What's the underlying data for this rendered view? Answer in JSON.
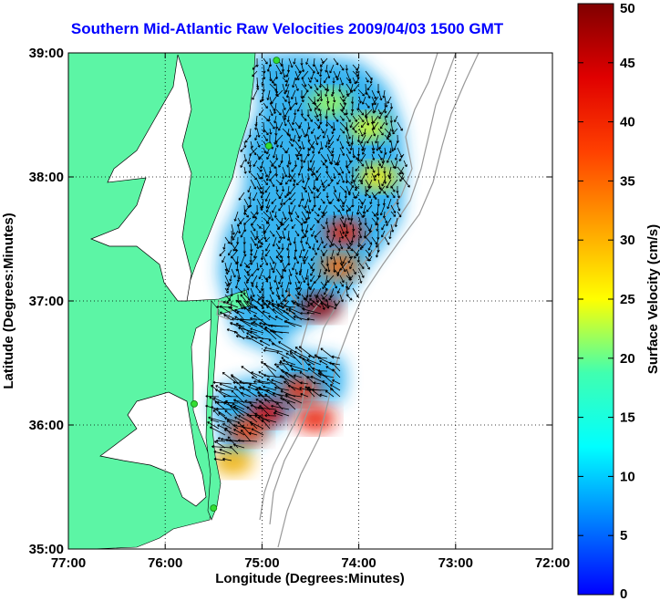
{
  "chart_data": {
    "type": "heatmap",
    "title": "Southern Mid-Atlantic Raw Velocities 2009/04/03 1500 GMT",
    "xlabel": "Longitude (Degrees:Minutes)",
    "ylabel": "Latitude (Degrees:Minutes)",
    "xlim": [
      -77,
      -72
    ],
    "ylim": [
      35,
      39
    ],
    "x_ticks": [
      -77,
      -76,
      -75,
      -74,
      -73,
      -72
    ],
    "x_tick_labels": [
      "77:00",
      "76:00",
      "75:00",
      "74:00",
      "73:00",
      "72:00"
    ],
    "y_ticks": [
      35,
      36,
      37,
      38,
      39
    ],
    "y_tick_labels": [
      "35:00",
      "36:00",
      "37:00",
      "38:00",
      "39:00"
    ],
    "grid": true,
    "colorbar": {
      "label": "Surface Velocity (cm/s)",
      "range": [
        0,
        50
      ],
      "ticks": [
        0,
        5,
        10,
        15,
        20,
        25,
        30,
        35,
        40,
        45,
        50
      ],
      "colormap": "jet"
    },
    "colors": {
      "land": "#5cf5a5",
      "title": "#0000ff",
      "radar_site": "#33dd33",
      "bathymetry": "#999999"
    },
    "radar_sites": [
      {
        "lon": -74.85,
        "lat": 38.94
      },
      {
        "lon": -74.93,
        "lat": 38.25
      },
      {
        "lon": -75.7,
        "lat": 36.17
      },
      {
        "lon": -75.5,
        "lat": 35.33
      }
    ],
    "velocity_hotspots": [
      {
        "lon": -74.15,
        "lat": 37.55,
        "speed": 42
      },
      {
        "lon": -74.2,
        "lat": 37.28,
        "speed": 35
      },
      {
        "lon": -74.4,
        "lat": 36.95,
        "speed": 48
      },
      {
        "lon": -74.6,
        "lat": 36.28,
        "speed": 40
      },
      {
        "lon": -74.95,
        "lat": 36.1,
        "speed": 44
      },
      {
        "lon": -75.15,
        "lat": 35.95,
        "speed": 38
      },
      {
        "lon": -74.45,
        "lat": 36.05,
        "speed": 42
      },
      {
        "lon": -73.9,
        "lat": 38.4,
        "speed": 24
      },
      {
        "lon": -74.3,
        "lat": 38.6,
        "speed": 22
      },
      {
        "lon": -73.8,
        "lat": 38.0,
        "speed": 26
      },
      {
        "lon": -75.3,
        "lat": 35.7,
        "speed": 30
      }
    ]
  }
}
